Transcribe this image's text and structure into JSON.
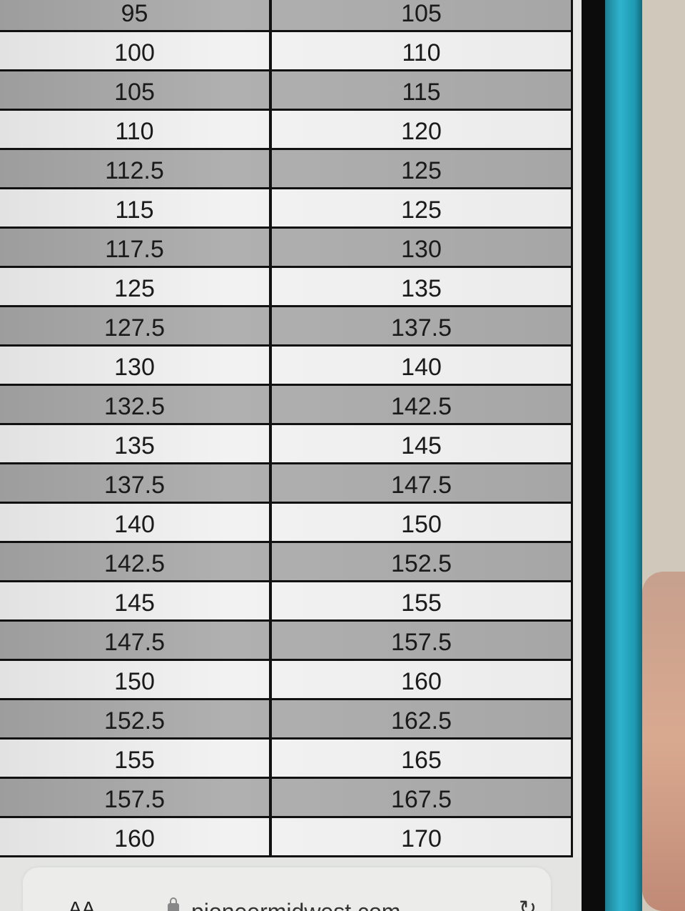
{
  "table": {
    "rows": [
      [
        "95",
        "105"
      ],
      [
        "100",
        "110"
      ],
      [
        "105",
        "115"
      ],
      [
        "110",
        "120"
      ],
      [
        "112.5",
        "125"
      ],
      [
        "115",
        "125"
      ],
      [
        "117.5",
        "130"
      ],
      [
        "125",
        "135"
      ],
      [
        "127.5",
        "137.5"
      ],
      [
        "130",
        "140"
      ],
      [
        "132.5",
        "142.5"
      ],
      [
        "135",
        "145"
      ],
      [
        "137.5",
        "147.5"
      ],
      [
        "140",
        "150"
      ],
      [
        "142.5",
        "152.5"
      ],
      [
        "145",
        "155"
      ],
      [
        "147.5",
        "157.5"
      ],
      [
        "150",
        "160"
      ],
      [
        "152.5",
        "162.5"
      ],
      [
        "155",
        "165"
      ],
      [
        "157.5",
        "167.5"
      ],
      [
        "160",
        "170"
      ]
    ],
    "colors": {
      "dark_row": "#a8a8a8",
      "light_row": "#ececec",
      "grid": "#111111"
    }
  },
  "browser": {
    "text_size_label": "AA",
    "url": "pioneermidwest.com",
    "lock_icon": "lock-icon",
    "reload_icon": "reload-icon"
  },
  "device": {
    "case_color": "#2fb3cc"
  }
}
